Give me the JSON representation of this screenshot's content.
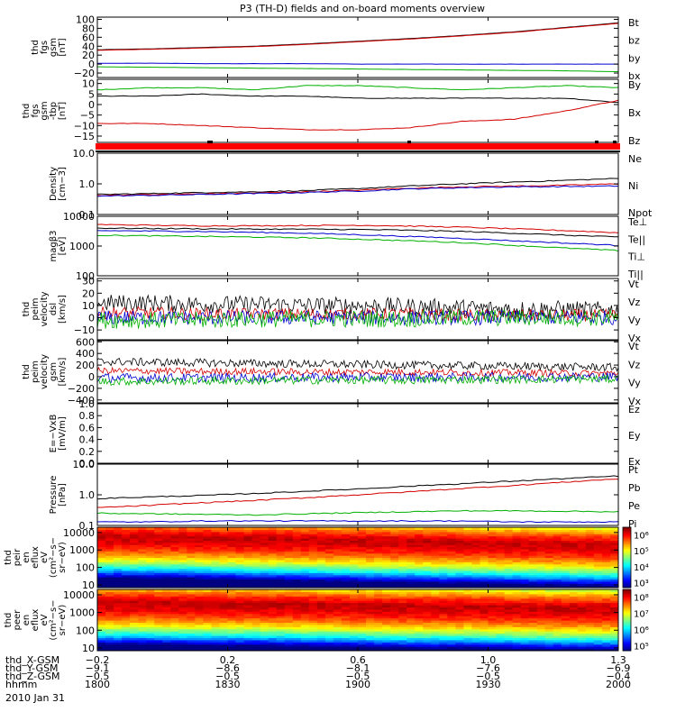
{
  "chart_data": {
    "type": "line",
    "title": "P3 (TH-D) fields and on-board moments overview",
    "panels": [
      {
        "ylabel_lines": [
          "thd",
          "fgs",
          "gsm",
          "[nT]"
        ],
        "yscale": "linear",
        "ylim": [
          -30,
          105
        ],
        "yticks": [
          "100",
          "80",
          "60",
          "40",
          "20",
          "0",
          "−20"
        ],
        "ytick_values": [
          100,
          80,
          60,
          40,
          20,
          0,
          -20
        ],
        "legend": [
          {
            "name": "Bt",
            "color": "#000000"
          },
          {
            "name": "bz",
            "color": "#d40000"
          },
          {
            "name": "by",
            "color": "#00b000"
          },
          {
            "name": "bx",
            "color": "#0000d0"
          }
        ],
        "series": [
          {
            "name": "Bt",
            "color": "#000000",
            "values": [
              32,
              34,
              37,
              40,
              45,
              51,
              57,
              64,
              72,
              82,
              92
            ]
          },
          {
            "name": "bz",
            "color": "#d40000",
            "values": [
              31,
              33,
              36,
              39,
              44,
              50,
              56,
              63,
              71,
              81,
              91
            ]
          },
          {
            "name": "by",
            "color": "#00b000",
            "values": [
              -6,
              -7,
              -8,
              -9,
              -10,
              -11,
              -12,
              -13,
              -14,
              -15,
              -17
            ]
          },
          {
            "name": "bx",
            "color": "#0000d0",
            "values": [
              2,
              2,
              1,
              1,
              1,
              0,
              0,
              0,
              0,
              0,
              0
            ]
          }
        ]
      },
      {
        "ylabel_lines": [
          "thd",
          "fgs",
          "gsm",
          "-tbp",
          "[nT]"
        ],
        "yscale": "linear",
        "ylim": [
          -18,
          12
        ],
        "yticks": [
          "10",
          "5",
          "0",
          "−5",
          "−10",
          "−15"
        ],
        "ytick_values": [
          10,
          5,
          0,
          -5,
          -10,
          -15
        ],
        "legend": [
          {
            "name": "By",
            "color": "#00b000"
          },
          {
            "name": "Bx",
            "color": "#000000"
          },
          {
            "name": "Bz",
            "color": "#d40000"
          }
        ],
        "series": [
          {
            "name": "By",
            "color": "#00b000",
            "values": [
              7,
              8,
              8,
              7,
              9,
              9,
              8,
              7,
              8,
              9,
              8
            ]
          },
          {
            "name": "Bx",
            "color": "#000000",
            "values": [
              4,
              4,
              5,
              4,
              4,
              3,
              3,
              3,
              3,
              3,
              1
            ]
          },
          {
            "name": "Bz",
            "color": "#d40000",
            "values": [
              -9,
              -9,
              -10,
              -11,
              -12,
              -12,
              -11,
              -8,
              -7,
              -3,
              2
            ]
          }
        ]
      },
      {
        "ylabel_lines": [
          "Density",
          "[cm−3]"
        ],
        "yscale": "log",
        "ylim": [
          0.1,
          10
        ],
        "yticks": [
          "10.0",
          "1.0",
          "0.1"
        ],
        "ytick_values": [
          10,
          1,
          0.1
        ],
        "legend": [
          {
            "name": "Ne",
            "color": "#d40000"
          },
          {
            "name": "Ni",
            "color": "#000000"
          },
          {
            "name": "Npot",
            "color": "#0000d0"
          }
        ],
        "series": [
          {
            "name": "Ni",
            "color": "#000000",
            "values": [
              0.45,
              0.48,
              0.52,
              0.55,
              0.6,
              0.7,
              0.85,
              1.0,
              1.15,
              1.3,
              1.5
            ]
          },
          {
            "name": "Ne",
            "color": "#d40000",
            "values": [
              0.42,
              0.44,
              0.47,
              0.5,
              0.55,
              0.62,
              0.72,
              0.8,
              0.85,
              0.9,
              1.0
            ]
          },
          {
            "name": "Npot",
            "color": "#0000d0",
            "values": [
              0.4,
              0.42,
              0.45,
              0.48,
              0.52,
              0.58,
              0.68,
              0.75,
              0.8,
              0.82,
              0.85
            ]
          }
        ]
      },
      {
        "ylabel_lines": [
          "magβ3",
          "[eV]"
        ],
        "yscale": "log",
        "ylim": [
          100,
          10000
        ],
        "yticks": [
          "10000",
          "1000",
          "100"
        ],
        "ytick_values": [
          10000,
          1000,
          100
        ],
        "legend": [
          {
            "name": "Te⊥",
            "color": "#d40000"
          },
          {
            "name": "Te||",
            "color": "#000000"
          },
          {
            "name": "Ti⊥",
            "color": "#0000d0"
          },
          {
            "name": "Ti||",
            "color": "#00b000"
          }
        ],
        "series": [
          {
            "name": "Te⊥",
            "color": "#d40000",
            "values": [
              5300,
              5000,
              4800,
              4800,
              4900,
              5000,
              4700,
              4300,
              3800,
              3300,
              2800
            ]
          },
          {
            "name": "Te||",
            "color": "#000000",
            "values": [
              4000,
              3900,
              3800,
              3700,
              3700,
              3600,
              3400,
              3100,
              2700,
              2300,
              2000
            ]
          },
          {
            "name": "Ti⊥",
            "color": "#0000d0",
            "values": [
              3300,
              3200,
              3100,
              2900,
              2700,
              2400,
              2100,
              1800,
              1500,
              1250,
              1050
            ]
          },
          {
            "name": "Ti||",
            "color": "#00b000",
            "values": [
              2300,
              2200,
              2100,
              2000,
              1900,
              1700,
              1500,
              1300,
              1050,
              850,
              700
            ]
          }
        ]
      },
      {
        "ylabel_lines": [
          "thd",
          "peim",
          "velocity",
          "dsl",
          "[km/s]"
        ],
        "yscale": "linear",
        "ylim": [
          -18,
          32
        ],
        "yticks": [
          "30",
          "20",
          "10",
          "0",
          "−10"
        ],
        "ytick_values": [
          30,
          20,
          10,
          0,
          -10
        ],
        "legend": [
          {
            "name": "Vt",
            "color": "#000000"
          },
          {
            "name": "Vz",
            "color": "#d40000"
          },
          {
            "name": "Vy",
            "color": "#00b000"
          },
          {
            "name": "Vx",
            "color": "#0000d0"
          }
        ],
        "noisy": true,
        "series": [
          {
            "name": "Vt",
            "color": "#000000",
            "values": [
              12,
              12,
              11,
              11,
              10,
              10,
              9,
              8,
              7,
              7,
              6
            ],
            "noise": 7
          },
          {
            "name": "Vz",
            "color": "#d40000",
            "values": [
              4,
              4,
              3,
              3,
              3,
              3,
              3,
              2,
              2,
              2,
              2
            ],
            "noise": 5
          },
          {
            "name": "Vx",
            "color": "#0000d0",
            "values": [
              0,
              0,
              0,
              0,
              0,
              0,
              0,
              0,
              0,
              0,
              0
            ],
            "noise": 6
          },
          {
            "name": "Vy",
            "color": "#00b000",
            "values": [
              -2,
              -2,
              -2,
              -1,
              -1,
              -1,
              -1,
              0,
              0,
              0,
              0
            ],
            "noise": 7
          }
        ]
      },
      {
        "ylabel_lines": [
          "thd",
          "peim",
          "velocity",
          "gsm",
          "[km/s]"
        ],
        "yscale": "linear",
        "ylim": [
          -450,
          620
        ],
        "yticks": [
          "600",
          "400",
          "200",
          "0",
          "−200",
          "−400"
        ],
        "ytick_values": [
          600,
          400,
          200,
          0,
          -200,
          -400
        ],
        "legend": [
          {
            "name": "Vt",
            "color": "#000000"
          },
          {
            "name": "Vz",
            "color": "#d40000"
          },
          {
            "name": "Vy",
            "color": "#00b000"
          },
          {
            "name": "Vx",
            "color": "#0000d0"
          }
        ],
        "noisy": true,
        "series": [
          {
            "name": "Vt",
            "color": "#000000",
            "values": [
              260,
              250,
              240,
              230,
              220,
              210,
              200,
              190,
              180,
              170,
              160
            ],
            "noise": 70
          },
          {
            "name": "Vz",
            "color": "#d40000",
            "values": [
              100,
              100,
              90,
              90,
              80,
              80,
              80,
              70,
              70,
              60,
              60
            ],
            "noise": 60
          },
          {
            "name": "Vx",
            "color": "#0000d0",
            "values": [
              -20,
              -20,
              -20,
              -15,
              -15,
              -10,
              -10,
              -10,
              -5,
              -5,
              0
            ],
            "noise": 80
          },
          {
            "name": "Vy",
            "color": "#00b000",
            "values": [
              -80,
              -80,
              -70,
              -70,
              -60,
              -60,
              -60,
              -50,
              -50,
              -40,
              -40
            ],
            "noise": 70
          }
        ]
      },
      {
        "ylabel_lines": [
          "E=−VxB",
          "[mV/m]"
        ],
        "yscale": "linear",
        "ylim": [
          0,
          1
        ],
        "yticks": [
          "1.0",
          "0.8",
          "0.6",
          "0.4",
          "0.2",
          "0.0"
        ],
        "ytick_values": [
          1,
          0.8,
          0.6,
          0.4,
          0.2,
          0
        ],
        "legend": [
          {
            "name": "Ez",
            "color": "#d40000"
          },
          {
            "name": "Ey",
            "color": "#00b000"
          },
          {
            "name": "Ex",
            "color": "#0000d0"
          }
        ],
        "series": []
      },
      {
        "ylabel_lines": [
          "Pressure",
          "[nPa]"
        ],
        "yscale": "log",
        "ylim": [
          0.1,
          10
        ],
        "yticks": [
          "10.0",
          "1.0",
          "0.1"
        ],
        "ytick_values": [
          10,
          1,
          0.1
        ],
        "legend": [
          {
            "name": "Pt",
            "color": "#000000"
          },
          {
            "name": "Pb",
            "color": "#d40000"
          },
          {
            "name": "Pe",
            "color": "#00b000"
          },
          {
            "name": "Pi",
            "color": "#0000d0"
          }
        ],
        "series": [
          {
            "name": "Pt",
            "color": "#000000",
            "values": [
              0.75,
              0.85,
              0.95,
              1.1,
              1.3,
              1.55,
              1.9,
              2.3,
              2.8,
              3.4,
              4.1
            ]
          },
          {
            "name": "Pb",
            "color": "#d40000",
            "values": [
              0.38,
              0.45,
              0.55,
              0.65,
              0.8,
              1.0,
              1.25,
              1.6,
              2.0,
              2.6,
              3.3
            ]
          },
          {
            "name": "Pe",
            "color": "#00b000",
            "values": [
              0.25,
              0.24,
              0.23,
              0.22,
              0.24,
              0.26,
              0.28,
              0.3,
              0.3,
              0.29,
              0.28
            ]
          },
          {
            "name": "Pi",
            "color": "#0000d0",
            "values": [
              0.13,
              0.13,
              0.14,
              0.14,
              0.14,
              0.14,
              0.14,
              0.14,
              0.13,
              0.13,
              0.13
            ]
          }
        ]
      },
      {
        "type": "heatmap",
        "ylabel_lines": [
          "thd",
          "peir",
          "en",
          "eflux",
          "eV",
          "(cm²−s−",
          "sr−eV)"
        ],
        "yscale": "log",
        "ylim": [
          7,
          20000
        ],
        "yticks": [
          "10000",
          "1000",
          "100",
          "10"
        ],
        "ytick_values": [
          10000,
          1000,
          100,
          10
        ],
        "colorbar_ticks": [
          "10⁶",
          "10⁵",
          "10⁴",
          "10³"
        ],
        "colorbar_values": [
          1000000,
          100000,
          10000,
          1000
        ],
        "cbar_range": [
          500,
          3000000
        ],
        "peak_log_energy": [
          3.8,
          3.8,
          3.75,
          3.7,
          3.65,
          3.6,
          3.55,
          3.5,
          3.45,
          3.4,
          3.35
        ]
      },
      {
        "type": "heatmap",
        "ylabel_lines": [
          "thd",
          "peer",
          "en",
          "eflux",
          "eV",
          "(cm²−s−",
          "sr−eV)"
        ],
        "yscale": "log",
        "ylim": [
          7,
          20000
        ],
        "yticks": [
          "10000",
          "1000",
          "100",
          "10"
        ],
        "ytick_values": [
          10000,
          1000,
          100,
          10
        ],
        "colorbar_ticks": [
          "10⁸",
          "10⁷",
          "10⁶",
          "10⁵"
        ],
        "colorbar_values": [
          100000000,
          10000000,
          1000000,
          100000
        ],
        "cbar_range": [
          50000,
          300000000
        ],
        "peak_log_energy": [
          3.6,
          3.6,
          3.55,
          3.55,
          3.5,
          3.45,
          3.4,
          3.4,
          3.35,
          3.3,
          3.3
        ]
      }
    ],
    "x": {
      "range": [
        "18:00",
        "20:00"
      ],
      "ticks": [
        "1800",
        "1830",
        "1900",
        "1930",
        "2000"
      ],
      "tick_minutes": [
        0,
        30,
        60,
        90,
        120
      ],
      "sample_minutes": [
        0,
        12,
        24,
        36,
        48,
        60,
        72,
        84,
        96,
        108,
        120
      ],
      "ephemeris": [
        {
          "label": "thd_X-GSM",
          "values": [
            "−0.2",
            "0.2",
            "0.6",
            "1.0",
            "1.3"
          ]
        },
        {
          "label": "thd_Y-GSM",
          "values": [
            "−9.1",
            "−8.6",
            "−8.1",
            "−7.6",
            "−6.9"
          ]
        },
        {
          "label": "thd_Z-GSM",
          "values": [
            "−0.5",
            "−0.5",
            "−0.5",
            "−0.5",
            "−0.4"
          ]
        },
        {
          "label": "hhmm",
          "values": [
            "1800",
            "1830",
            "1900",
            "1930",
            "2000"
          ]
        }
      ],
      "date": "2010 Jan 31"
    }
  }
}
